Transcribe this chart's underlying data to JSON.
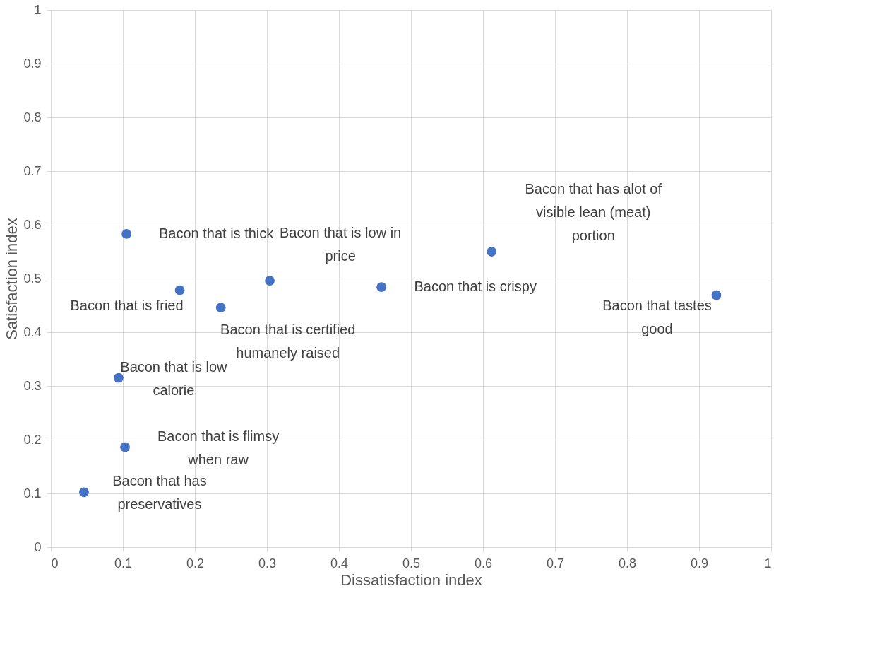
{
  "chart_data": {
    "type": "scatter",
    "xlabel": "Dissatisfaction index",
    "ylabel": "Satisfaction index",
    "x": [
      0.105,
      0.179,
      0.236,
      0.304,
      0.459,
      0.612,
      0.924,
      0.094,
      0.103,
      0.046
    ],
    "series": [
      {
        "color": "#4472c4",
        "values": [
          0.583,
          0.478,
          0.446,
          0.496,
          0.484,
          0.55,
          0.469,
          0.315,
          0.186,
          0.102
        ]
      }
    ],
    "xlim": [
      0,
      1
    ],
    "ylim": [
      0,
      1
    ],
    "xticks": [
      0,
      0.1,
      0.2,
      0.3,
      0.4,
      0.5,
      0.6,
      0.7,
      0.8,
      0.9,
      1
    ],
    "yticks": [
      0,
      0.1,
      0.2,
      0.3,
      0.4,
      0.5,
      0.6,
      0.7,
      0.8,
      0.9,
      1
    ],
    "grid": true,
    "marker": "circle",
    "annotations": [
      {
        "text": "Bacon that is thick",
        "x": 0.105,
        "y": 0.583
      },
      {
        "text": "Bacon that is fried",
        "x": 0.179,
        "y": 0.478
      },
      {
        "text": "Bacon that is certified humanely raised",
        "x": 0.236,
        "y": 0.446
      },
      {
        "text": "Bacon that is low in price",
        "x": 0.304,
        "y": 0.496
      },
      {
        "text": "Bacon that is crispy",
        "x": 0.459,
        "y": 0.484
      },
      {
        "text": "Bacon that has alot of visible lean (meat) portion",
        "x": 0.612,
        "y": 0.55
      },
      {
        "text": "Bacon that tastes good",
        "x": 0.924,
        "y": 0.469
      },
      {
        "text": "Bacon that is low calorie",
        "x": 0.094,
        "y": 0.315
      },
      {
        "text": "Bacon that is flimsy when raw",
        "x": 0.103,
        "y": 0.186
      },
      {
        "text": "Bacon that has preservatives",
        "x": 0.046,
        "y": 0.102
      }
    ]
  }
}
